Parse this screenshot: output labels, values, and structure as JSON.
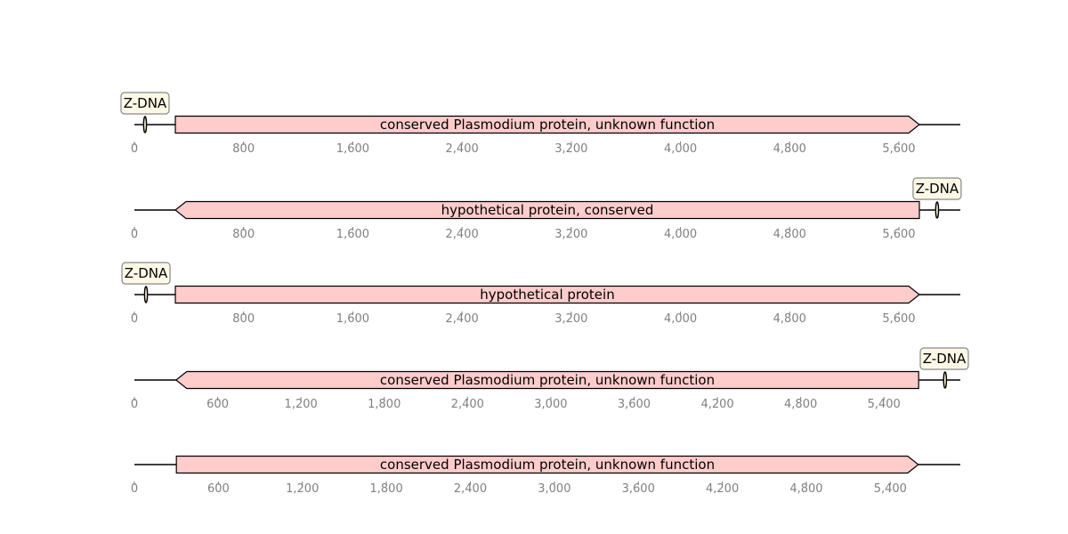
{
  "colors": {
    "gene_fill": "#ffcccc",
    "gene_stroke": "#000000",
    "feature_fill": "#fdf6dc",
    "label_box_fill": "#fdf9e6",
    "label_box_stroke": "#888888",
    "tick_text": "#808080",
    "line": "#000000"
  },
  "tracks": [
    {
      "sequence_length": 6050,
      "tick_step": 800,
      "tick_labels": [
        "0",
        "800",
        "1,600",
        "2,400",
        "3,200",
        "4,000",
        "4,800",
        "5,600"
      ],
      "gene": {
        "label": "conserved Plasmodium protein, unknown function",
        "start": 300,
        "end": 5750,
        "strand": "+"
      },
      "feature": {
        "label": "Z-DNA",
        "position": 78
      }
    },
    {
      "sequence_length": 6050,
      "tick_step": 800,
      "tick_labels": [
        "0",
        "800",
        "1,600",
        "2,400",
        "3,200",
        "4,000",
        "4,800",
        "5,600"
      ],
      "gene": {
        "label": "hypothetical protein, conserved",
        "start": 300,
        "end": 5750,
        "strand": "-"
      },
      "feature": {
        "label": "Z-DNA",
        "position": 5880
      }
    },
    {
      "sequence_length": 6050,
      "tick_step": 800,
      "tick_labels": [
        "0",
        "800",
        "1,600",
        "2,400",
        "3,200",
        "4,000",
        "4,800",
        "5,600"
      ],
      "gene": {
        "label": "hypothetical protein",
        "start": 300,
        "end": 5750,
        "strand": "+"
      },
      "feature": {
        "label": "Z-DNA",
        "position": 85
      }
    },
    {
      "sequence_length": 5950,
      "tick_step": 600,
      "tick_labels": [
        "0",
        "600",
        "1,200",
        "1,800",
        "2,400",
        "3,000",
        "3,600",
        "4,200",
        "4,800",
        "5,400"
      ],
      "gene": {
        "label": "conserved Plasmodium protein, unknown function",
        "start": 300,
        "end": 5650,
        "strand": "-"
      },
      "feature": {
        "label": "Z-DNA",
        "position": 5840
      }
    },
    {
      "sequence_length": 5900,
      "tick_step": 600,
      "tick_labels": [
        "0",
        "600",
        "1,200",
        "1,800",
        "2,400",
        "3,000",
        "3,600",
        "4,200",
        "4,800",
        "5,400"
      ],
      "gene": {
        "label": "conserved Plasmodium protein, unknown function",
        "start": 300,
        "end": 5600,
        "strand": "+"
      },
      "feature": null
    }
  ]
}
